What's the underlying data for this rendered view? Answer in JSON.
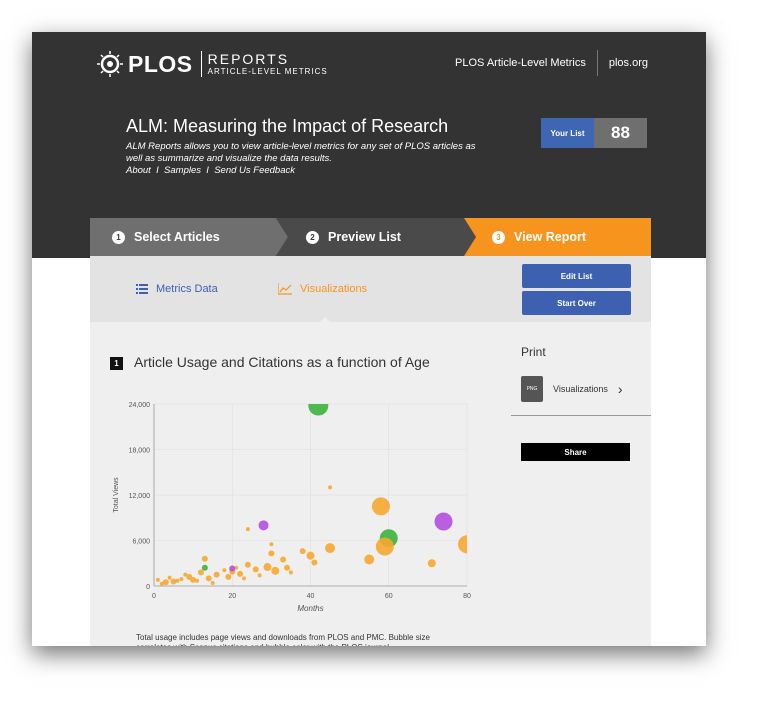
{
  "logo": {
    "brand": "PLOS",
    "reports": "REPORTS",
    "subtitle": "ARTICLE-LEVEL METRICS"
  },
  "nav": {
    "alm_link": "PLOS Article-Level Metrics",
    "plos_link": "plos.org"
  },
  "hero": {
    "title": "ALM: Measuring the Impact of Research",
    "description": "ALM Reports allows you to view article-level metrics for any set of PLOS articles as well as summarize and visualize the data results.",
    "links": [
      "About",
      "Samples",
      "Send Us Feedback"
    ],
    "link_sep": "I"
  },
  "your_list": {
    "label": "Your List",
    "count": "88"
  },
  "steps": [
    {
      "num": "1",
      "label": "Select Articles"
    },
    {
      "num": "2",
      "label": "Preview List"
    },
    {
      "num": "3",
      "label": "View Report"
    }
  ],
  "tabs": {
    "metrics": "Metrics Data",
    "visualizations": "Visualizations"
  },
  "buttons": {
    "edit_list": "Edit List",
    "start_over": "Start Over",
    "share": "Share"
  },
  "section": {
    "num": "1",
    "title": "Article Usage and Citations as a function of Age"
  },
  "print": {
    "label": "Print",
    "item": "Visualizations",
    "doc_label": "PNG"
  },
  "caption": "Total usage includes page views and downloads from PLOS and PMC. Bubble size correlates with Scopus citations and bubble color with the PLOS journal.",
  "colors": {
    "header_bg": "#333333",
    "accent_orange": "#f7941d",
    "accent_blue": "#3d61b0",
    "bubble_orange": "#f7a731",
    "bubble_green": "#3cb43c",
    "bubble_purple": "#b14fe0"
  },
  "chart_data": {
    "type": "scatter",
    "xlabel": "Months",
    "ylabel": "Total Views",
    "xlim": [
      0,
      80
    ],
    "ylim": [
      0,
      24000
    ],
    "xticks": [
      "0",
      "20",
      "40",
      "60",
      "80"
    ],
    "yticks": [
      "0",
      "6,000",
      "12,000",
      "18,000",
      "24,000"
    ],
    "points": [
      {
        "x": 42,
        "y": 23800,
        "r": 10,
        "c": "green"
      },
      {
        "x": 58,
        "y": 10500,
        "r": 9,
        "c": "orange"
      },
      {
        "x": 60,
        "y": 6300,
        "r": 9,
        "c": "green"
      },
      {
        "x": 59,
        "y": 5200,
        "r": 9,
        "c": "orange"
      },
      {
        "x": 74,
        "y": 8500,
        "r": 9,
        "c": "purple"
      },
      {
        "x": 80,
        "y": 5500,
        "r": 9,
        "c": "orange"
      },
      {
        "x": 28,
        "y": 8000,
        "r": 5,
        "c": "purple"
      },
      {
        "x": 45,
        "y": 13000,
        "r": 2,
        "c": "orange"
      },
      {
        "x": 45,
        "y": 5000,
        "r": 5,
        "c": "orange"
      },
      {
        "x": 55,
        "y": 3500,
        "r": 5,
        "c": "orange"
      },
      {
        "x": 71,
        "y": 3000,
        "r": 4,
        "c": "orange"
      },
      {
        "x": 38,
        "y": 4600,
        "r": 3,
        "c": "orange"
      },
      {
        "x": 40,
        "y": 4000,
        "r": 4,
        "c": "orange"
      },
      {
        "x": 41,
        "y": 3100,
        "r": 3,
        "c": "orange"
      },
      {
        "x": 30,
        "y": 4300,
        "r": 3,
        "c": "orange"
      },
      {
        "x": 30,
        "y": 5500,
        "r": 2,
        "c": "orange"
      },
      {
        "x": 24,
        "y": 7500,
        "r": 2,
        "c": "orange"
      },
      {
        "x": 29,
        "y": 2500,
        "r": 4,
        "c": "orange"
      },
      {
        "x": 31,
        "y": 2000,
        "r": 4,
        "c": "orange"
      },
      {
        "x": 33,
        "y": 3500,
        "r": 3,
        "c": "orange"
      },
      {
        "x": 34,
        "y": 2400,
        "r": 3,
        "c": "orange"
      },
      {
        "x": 35,
        "y": 1800,
        "r": 2,
        "c": "orange"
      },
      {
        "x": 26,
        "y": 2200,
        "r": 3,
        "c": "orange"
      },
      {
        "x": 24,
        "y": 2800,
        "r": 3,
        "c": "orange"
      },
      {
        "x": 22,
        "y": 1600,
        "r": 3,
        "c": "orange"
      },
      {
        "x": 21,
        "y": 2400,
        "r": 2,
        "c": "orange"
      },
      {
        "x": 20,
        "y": 1900,
        "r": 3,
        "c": "orange"
      },
      {
        "x": 19,
        "y": 1200,
        "r": 3,
        "c": "orange"
      },
      {
        "x": 18,
        "y": 2100,
        "r": 2,
        "c": "orange"
      },
      {
        "x": 16,
        "y": 1500,
        "r": 3,
        "c": "orange"
      },
      {
        "x": 14,
        "y": 1000,
        "r": 3,
        "c": "orange"
      },
      {
        "x": 13,
        "y": 3600,
        "r": 3,
        "c": "orange"
      },
      {
        "x": 12,
        "y": 1800,
        "r": 3,
        "c": "orange"
      },
      {
        "x": 10,
        "y": 800,
        "r": 3,
        "c": "orange"
      },
      {
        "x": 9,
        "y": 1200,
        "r": 3,
        "c": "orange"
      },
      {
        "x": 8,
        "y": 1500,
        "r": 2,
        "c": "orange"
      },
      {
        "x": 6,
        "y": 700,
        "r": 2,
        "c": "orange"
      },
      {
        "x": 5,
        "y": 600,
        "r": 3,
        "c": "orange"
      },
      {
        "x": 4,
        "y": 1100,
        "r": 2,
        "c": "orange"
      },
      {
        "x": 3,
        "y": 500,
        "r": 3,
        "c": "orange"
      },
      {
        "x": 2,
        "y": 300,
        "r": 2,
        "c": "orange"
      },
      {
        "x": 1,
        "y": 800,
        "r": 2,
        "c": "orange"
      },
      {
        "x": 27,
        "y": 1400,
        "r": 2,
        "c": "orange"
      },
      {
        "x": 23,
        "y": 1000,
        "r": 2,
        "c": "orange"
      },
      {
        "x": 15,
        "y": 400,
        "r": 2,
        "c": "orange"
      },
      {
        "x": 11,
        "y": 700,
        "r": 2,
        "c": "orange"
      },
      {
        "x": 7,
        "y": 900,
        "r": 2,
        "c": "orange"
      },
      {
        "x": 13,
        "y": 2400,
        "r": 3,
        "c": "green"
      },
      {
        "x": 20,
        "y": 2300,
        "r": 3,
        "c": "purple"
      }
    ]
  }
}
